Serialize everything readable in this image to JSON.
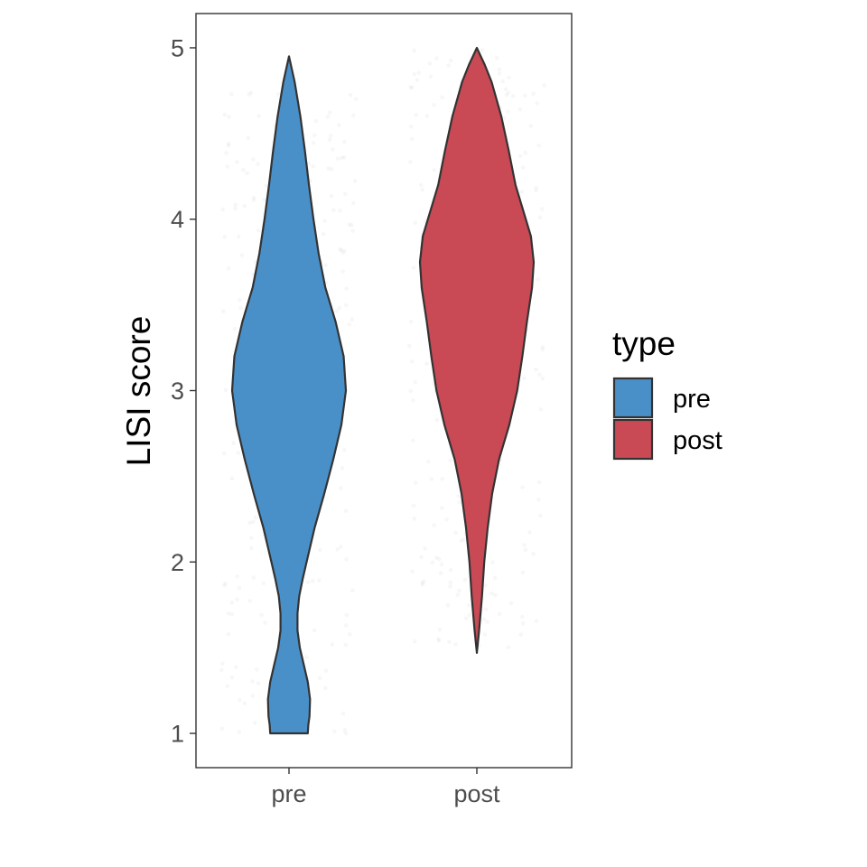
{
  "chart_data": {
    "type": "violin",
    "xlabel": "",
    "ylabel": "LISI score",
    "ylim": [
      0.8,
      5.2
    ],
    "yticks": [
      1,
      2,
      3,
      4,
      5
    ],
    "categories": [
      "pre",
      "post"
    ],
    "grid": false,
    "legend": {
      "title": "type",
      "position": "right",
      "entries": [
        {
          "label": "pre",
          "color": "#4A90C8"
        },
        {
          "label": "post",
          "color": "#C94A55"
        }
      ]
    },
    "series": [
      {
        "name": "pre",
        "color": "#4A90C8",
        "min": 1.0,
        "max": 4.95,
        "density": [
          [
            1.0,
            0.33
          ],
          [
            1.05,
            0.34
          ],
          [
            1.1,
            0.36
          ],
          [
            1.2,
            0.37
          ],
          [
            1.3,
            0.33
          ],
          [
            1.4,
            0.26
          ],
          [
            1.5,
            0.19
          ],
          [
            1.6,
            0.15
          ],
          [
            1.7,
            0.15
          ],
          [
            1.8,
            0.18
          ],
          [
            1.9,
            0.24
          ],
          [
            2.0,
            0.31
          ],
          [
            2.2,
            0.45
          ],
          [
            2.4,
            0.62
          ],
          [
            2.6,
            0.78
          ],
          [
            2.8,
            0.92
          ],
          [
            3.0,
            1.0
          ],
          [
            3.2,
            0.96
          ],
          [
            3.4,
            0.82
          ],
          [
            3.6,
            0.64
          ],
          [
            3.8,
            0.52
          ],
          [
            4.0,
            0.43
          ],
          [
            4.2,
            0.35
          ],
          [
            4.4,
            0.28
          ],
          [
            4.6,
            0.2
          ],
          [
            4.8,
            0.1
          ],
          [
            4.95,
            0.0
          ]
        ]
      },
      {
        "name": "post",
        "color": "#C94A55",
        "min": 1.47,
        "max": 5.0,
        "density": [
          [
            1.47,
            0.0
          ],
          [
            1.6,
            0.04
          ],
          [
            1.8,
            0.09
          ],
          [
            2.0,
            0.13
          ],
          [
            2.2,
            0.19
          ],
          [
            2.4,
            0.27
          ],
          [
            2.6,
            0.39
          ],
          [
            2.8,
            0.57
          ],
          [
            3.0,
            0.71
          ],
          [
            3.2,
            0.8
          ],
          [
            3.4,
            0.88
          ],
          [
            3.6,
            0.97
          ],
          [
            3.75,
            1.0
          ],
          [
            3.9,
            0.95
          ],
          [
            4.0,
            0.86
          ],
          [
            4.2,
            0.68
          ],
          [
            4.4,
            0.56
          ],
          [
            4.6,
            0.43
          ],
          [
            4.8,
            0.26
          ],
          [
            4.9,
            0.14
          ],
          [
            5.0,
            0.0
          ]
        ]
      }
    ]
  }
}
